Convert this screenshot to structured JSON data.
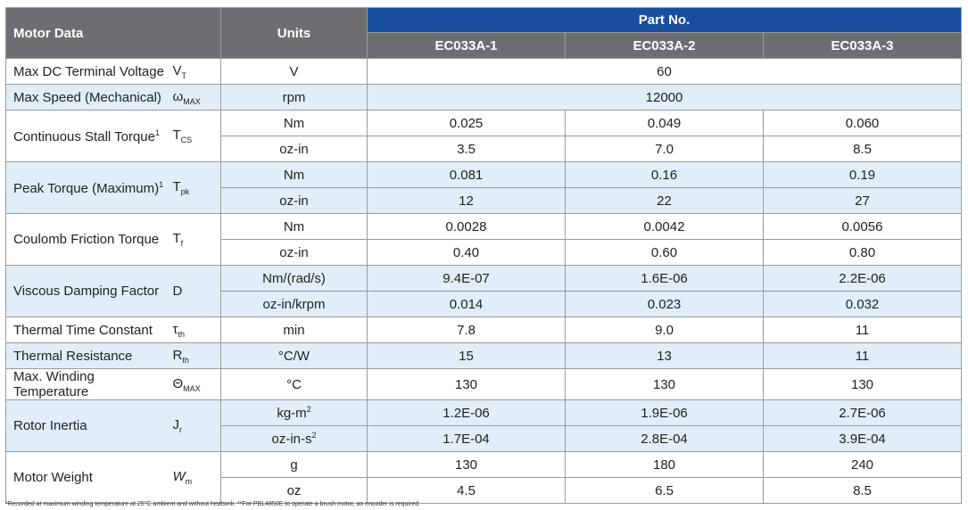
{
  "header": {
    "motor_data": "Motor Data",
    "units": "Units",
    "part_no": "Part No.",
    "parts": [
      "EC033A-1",
      "EC033A-2",
      "EC033A-3"
    ]
  },
  "rows": {
    "max_dc_voltage": {
      "name": "Max DC Terminal Voltage",
      "sym": "V",
      "sub": "T",
      "unit": "V",
      "value": "60"
    },
    "max_speed": {
      "name": "Max Speed (Mechanical)",
      "sym": "ω",
      "sub": "MAX",
      "unit": "rpm",
      "value": "12000"
    },
    "cont_stall": {
      "name": "Continuous Stall Torque",
      "sup": "1",
      "sym": "T",
      "sub": "CS",
      "r1": {
        "unit": "Nm",
        "v": [
          "0.025",
          "0.049",
          "0.060"
        ]
      },
      "r2": {
        "unit": "oz-in",
        "v": [
          "3.5",
          "7.0",
          "8.5"
        ]
      }
    },
    "peak_torque": {
      "name": "Peak Torque (Maximum)",
      "sup": "1",
      "sym": "T",
      "sub": "pk",
      "r1": {
        "unit": "Nm",
        "v": [
          "0.081",
          "0.16",
          "0.19"
        ]
      },
      "r2": {
        "unit": "oz-in",
        "v": [
          "12",
          "22",
          "27"
        ]
      }
    },
    "coulomb": {
      "name": "Coulomb Friction Torque",
      "sym": "T",
      "sub": "f",
      "r1": {
        "unit": "Nm",
        "v": [
          "0.0028",
          "0.0042",
          "0.0056"
        ]
      },
      "r2": {
        "unit": "oz-in",
        "v": [
          "0.40",
          "0.60",
          "0.80"
        ]
      }
    },
    "viscous": {
      "name": "Viscous Damping Factor",
      "sym": "D",
      "r1": {
        "unit": "Nm/(rad/s)",
        "v": [
          "9.4E-07",
          "1.6E-06",
          "2.2E-06"
        ]
      },
      "r2": {
        "unit": "oz-in/krpm",
        "v": [
          "0.014",
          "0.023",
          "0.032"
        ]
      }
    },
    "thermal_time": {
      "name": "Thermal Time Constant",
      "sym": "τ",
      "sub": "th",
      "unit": "min",
      "v": [
        "7.8",
        "9.0",
        "11"
      ]
    },
    "thermal_res": {
      "name": "Thermal Resistance",
      "sym": "R",
      "sub": "th",
      "unit": "°C/W",
      "v": [
        "15",
        "13",
        "11"
      ]
    },
    "max_winding": {
      "name": "Max. Winding Temperature",
      "sym": "Θ",
      "sub": "MAX",
      "unit": "°C",
      "v": [
        "130",
        "130",
        "130"
      ]
    },
    "rotor_inertia": {
      "name": "Rotor Inertia",
      "sym": "J",
      "sub": "r",
      "r1": {
        "unit": "kg-m",
        "unit_sup": "2",
        "v": [
          "1.2E-06",
          "1.9E-06",
          "2.7E-06"
        ]
      },
      "r2": {
        "unit": "oz-in-s",
        "unit_sup": "2",
        "v": [
          "1.7E-04",
          "2.8E-04",
          "3.9E-04"
        ]
      }
    },
    "motor_weight": {
      "name": "Motor Weight",
      "sym": "W",
      "sub": "m",
      "r1": {
        "unit": "g",
        "v": [
          "130",
          "180",
          "240"
        ]
      },
      "r2": {
        "unit": "oz",
        "v": [
          "4.5",
          "6.5",
          "8.5"
        ]
      }
    }
  },
  "footnote": "¹Recorded at maximum winding temperature at 25°C ambient and without heatsink. **For PBL4850E to operate a brush motor, an encoder is required."
}
